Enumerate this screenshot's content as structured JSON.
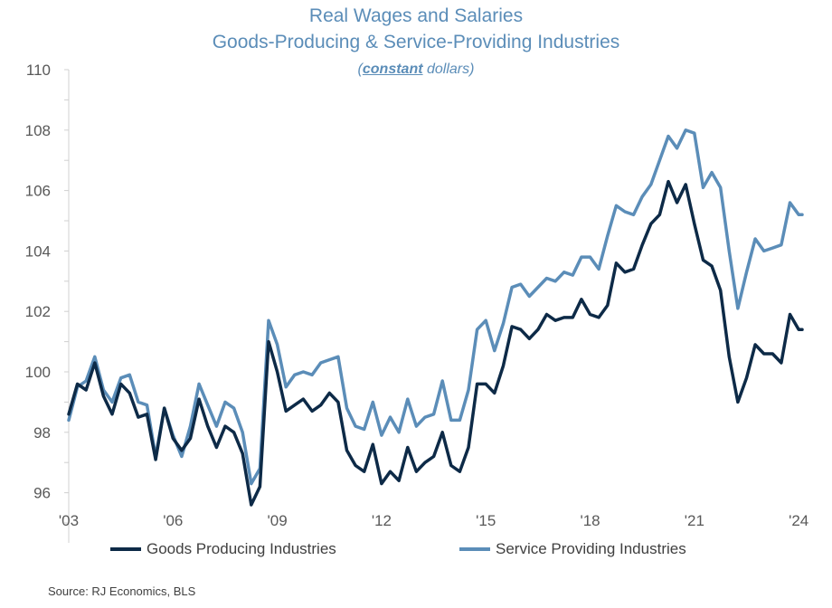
{
  "chart_data": {
    "type": "line",
    "title": "Real Wages and Salaries",
    "subtitle": "Goods-Producing & Service-Providing Industries",
    "note_prefix": "(",
    "note_emphasis": "constant",
    "note_suffix": " dollars)",
    "source": "Source: RJ Economics, BLS",
    "xlabel": "",
    "ylabel": "",
    "ylim": [
      95,
      110
    ],
    "yticks": [
      96,
      98,
      100,
      102,
      104,
      106,
      108,
      110
    ],
    "xlim": [
      2003,
      2024.1
    ],
    "xticks": [
      {
        "value": 2003,
        "label": "'03"
      },
      {
        "value": 2006,
        "label": "'06"
      },
      {
        "value": 2009,
        "label": "'09"
      },
      {
        "value": 2012,
        "label": "'12"
      },
      {
        "value": 2015,
        "label": "'15"
      },
      {
        "value": 2018,
        "label": "'18"
      },
      {
        "value": 2021,
        "label": "'21"
      },
      {
        "value": 2024,
        "label": "'24"
      }
    ],
    "grid": false,
    "legend_position": "bottom",
    "x": [
      2003.0,
      2003.25,
      2003.5,
      2003.75,
      2004.0,
      2004.25,
      2004.5,
      2004.75,
      2005.0,
      2005.25,
      2005.5,
      2005.75,
      2006.0,
      2006.25,
      2006.5,
      2006.75,
      2007.0,
      2007.25,
      2007.5,
      2007.75,
      2008.0,
      2008.25,
      2008.5,
      2008.75,
      2009.0,
      2009.25,
      2009.5,
      2009.75,
      2010.0,
      2010.25,
      2010.5,
      2010.75,
      2011.0,
      2011.25,
      2011.5,
      2011.75,
      2012.0,
      2012.25,
      2012.5,
      2012.75,
      2013.0,
      2013.25,
      2013.5,
      2013.75,
      2014.0,
      2014.25,
      2014.5,
      2014.75,
      2015.0,
      2015.25,
      2015.5,
      2015.75,
      2016.0,
      2016.25,
      2016.5,
      2016.75,
      2017.0,
      2017.25,
      2017.5,
      2017.75,
      2018.0,
      2018.25,
      2018.5,
      2018.75,
      2019.0,
      2019.25,
      2019.5,
      2019.75,
      2020.0,
      2020.25,
      2020.5,
      2020.75,
      2021.0,
      2021.25,
      2021.5,
      2021.75,
      2022.0,
      2022.25,
      2022.5,
      2022.75,
      2023.0,
      2023.25,
      2023.5,
      2023.75,
      2024.0,
      2024.1
    ],
    "series": [
      {
        "name": "Goods Producing Industries",
        "color": "#0d2a47",
        "values": [
          98.6,
          99.6,
          99.4,
          100.3,
          99.2,
          98.6,
          99.6,
          99.3,
          98.5,
          98.6,
          97.1,
          98.8,
          97.8,
          97.4,
          97.8,
          99.1,
          98.2,
          97.5,
          98.2,
          98.0,
          97.3,
          95.6,
          96.2,
          101.0,
          100.0,
          98.7,
          98.9,
          99.1,
          98.7,
          98.9,
          99.3,
          99.0,
          97.4,
          96.9,
          96.7,
          97.6,
          96.3,
          96.7,
          96.4,
          97.5,
          96.7,
          97.0,
          97.2,
          98.0,
          96.9,
          96.7,
          97.5,
          99.6,
          99.6,
          99.3,
          100.2,
          101.5,
          101.4,
          101.1,
          101.4,
          101.9,
          101.7,
          101.8,
          101.8,
          102.4,
          101.9,
          101.8,
          102.2,
          103.6,
          103.3,
          103.4,
          104.2,
          104.9,
          105.2,
          106.3,
          105.6,
          106.2,
          104.9,
          103.7,
          103.5,
          102.7,
          100.5,
          99.0,
          99.8,
          100.9,
          100.6,
          100.6,
          100.3,
          101.9,
          101.4,
          101.4
        ]
      },
      {
        "name": "Service Providing Industries",
        "color": "#5b8db8",
        "values": [
          98.4,
          99.5,
          99.7,
          100.5,
          99.4,
          99.0,
          99.8,
          99.9,
          99.0,
          98.9,
          97.2,
          98.8,
          97.9,
          97.2,
          98.2,
          99.6,
          98.9,
          98.2,
          99.0,
          98.8,
          98.0,
          96.3,
          96.8,
          101.7,
          100.9,
          99.5,
          99.9,
          100.0,
          99.9,
          100.3,
          100.4,
          100.5,
          98.8,
          98.2,
          98.1,
          99.0,
          97.9,
          98.5,
          98.0,
          99.1,
          98.2,
          98.5,
          98.6,
          99.7,
          98.4,
          98.4,
          99.4,
          101.4,
          101.7,
          100.7,
          101.6,
          102.8,
          102.9,
          102.5,
          102.8,
          103.1,
          103.0,
          103.3,
          103.2,
          103.8,
          103.8,
          103.4,
          104.5,
          105.5,
          105.3,
          105.2,
          105.8,
          106.2,
          107.0,
          107.8,
          107.4,
          108.0,
          107.9,
          106.1,
          106.6,
          106.1,
          104.0,
          102.1,
          103.3,
          104.4,
          104.0,
          104.1,
          104.2,
          105.6,
          105.2,
          105.2
        ]
      }
    ]
  }
}
